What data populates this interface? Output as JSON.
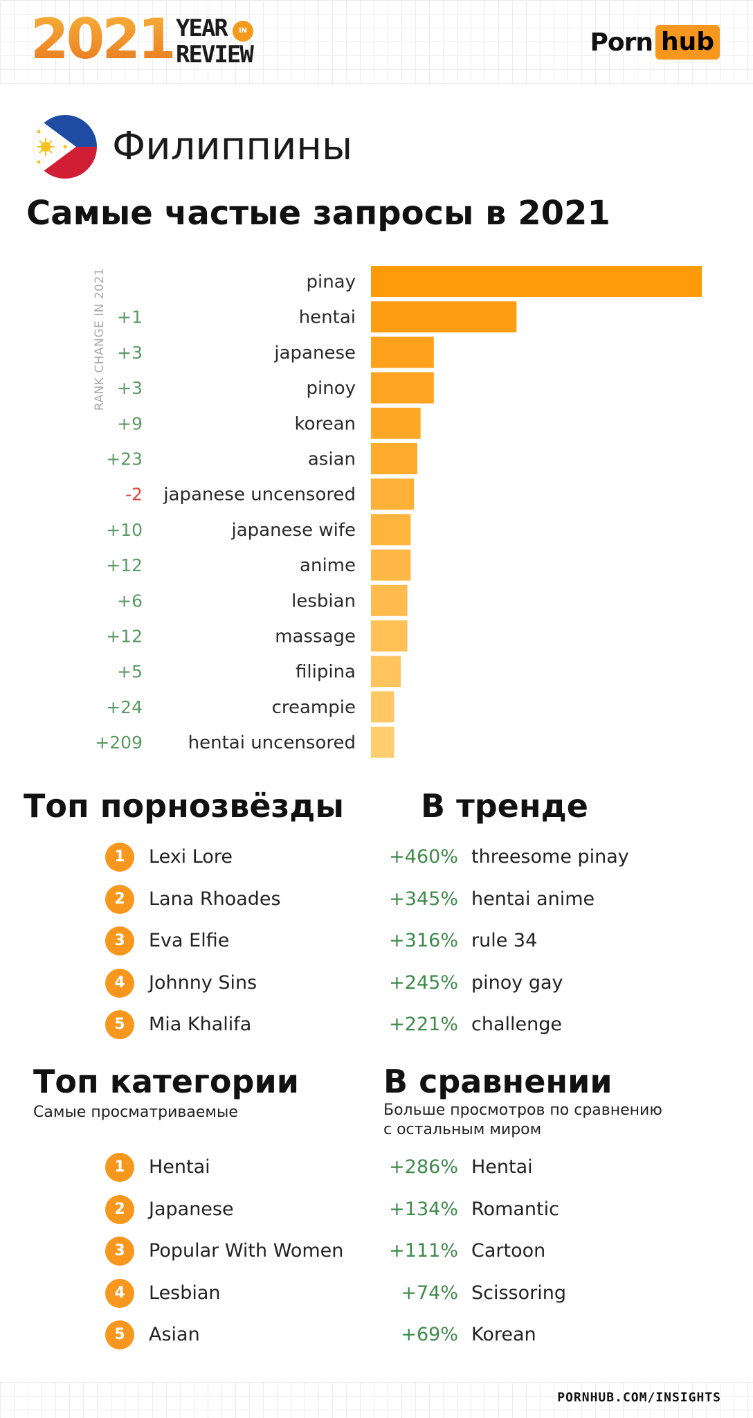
{
  "header": {
    "year": "2021",
    "year_word": "YEAR",
    "in_word": "IN",
    "review_word": "REVIEW",
    "brand_porn": "Porn",
    "brand_hub": "hub"
  },
  "country": "Филиппины",
  "title": "Самые частые запросы в 2021",
  "chart_data": {
    "type": "bar",
    "orientation": "horizontal",
    "rank_axis_label": "RANK CHANGE IN 2021",
    "categories": [
      "pinay",
      "hentai",
      "japanese",
      "pinoy",
      "korean",
      "asian",
      "japanese uncensored",
      "japanese wife",
      "anime",
      "lesbian",
      "massage",
      "filipina",
      "creampie",
      "hentai uncensored"
    ],
    "rank_changes": [
      "",
      "+1",
      "+3",
      "+3",
      "+9",
      "+23",
      "-2",
      "+10",
      "+12",
      "+6",
      "+12",
      "+5",
      "+24",
      "+209"
    ],
    "values": [
      100,
      44,
      19,
      19,
      15,
      14,
      13,
      12,
      12,
      11,
      11,
      9,
      7,
      7
    ],
    "colors": [
      "#ff9b0a",
      "#ff9e12",
      "#ffa11a",
      "#ffa420",
      "#ffa826",
      "#ffac2e",
      "#ffb036",
      "#ffb43e",
      "#ffb845",
      "#ffbc4d",
      "#ffc055",
      "#ffc45d",
      "#ffc865",
      "#ffcc6e"
    ],
    "grid": false,
    "legend": "none"
  },
  "pornstars": {
    "title": "Топ порнозвёзды",
    "items": [
      "Lexi Lore",
      "Lana Rhoades",
      "Eva Elfie",
      "Johnny Sins",
      "Mia Khalifa"
    ]
  },
  "trending": {
    "title": "В тренде",
    "items": [
      {
        "pct": "+460%",
        "label": "threesome pinay"
      },
      {
        "pct": "+345%",
        "label": "hentai anime"
      },
      {
        "pct": "+316%",
        "label": "rule 34"
      },
      {
        "pct": "+245%",
        "label": "pinoy gay"
      },
      {
        "pct": "+221%",
        "label": "challenge"
      }
    ]
  },
  "categories": {
    "title": "Топ категории",
    "subtitle": "Самые просматриваемые",
    "items": [
      "Hentai",
      "Japanese",
      "Popular With Women",
      "Lesbian",
      "Asian"
    ]
  },
  "comparison": {
    "title": "В сравнении",
    "subtitle_line1": "Больше просмотров по сравнению",
    "subtitle_line2": "с остальным миром",
    "items": [
      {
        "pct": "+286%",
        "label": "Hentai"
      },
      {
        "pct": "+134%",
        "label": "Romantic"
      },
      {
        "pct": "+111%",
        "label": "Cartoon"
      },
      {
        "pct": "+74%",
        "label": "Scissoring"
      },
      {
        "pct": "+69%",
        "label": "Korean"
      }
    ]
  },
  "badge_numbers": [
    "1",
    "2",
    "3",
    "4",
    "5"
  ],
  "footer": "PORNHUB.COM/INSIGHTS",
  "colors": {
    "accent": "#f7971d",
    "positive": "#3d8a4a",
    "negative": "#e0453a"
  }
}
